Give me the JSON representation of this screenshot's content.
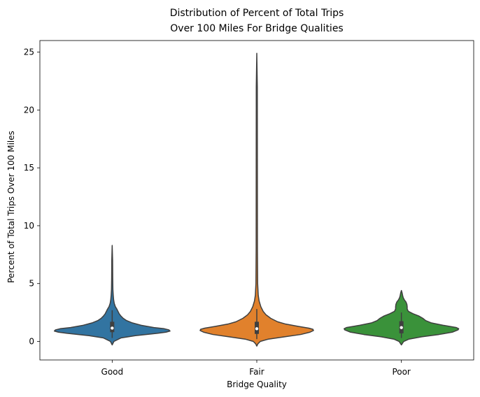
{
  "chart_data": {
    "type": "violin",
    "title": [
      "Distribution of Percent of Total Trips",
      "Over 100 Miles For Bridge Qualities"
    ],
    "xlabel": "Bridge Quality",
    "ylabel": "Percent of Total Trips Over 100 Miles",
    "ylim": [
      -1.6,
      26.0
    ],
    "yticks": [
      0,
      5,
      10,
      15,
      20,
      25
    ],
    "categories": [
      "Good",
      "Fair",
      "Poor"
    ],
    "colors": [
      "#3274a1",
      "#e1812c",
      "#3a923a"
    ],
    "grid": false,
    "series": [
      {
        "category": "Good",
        "min": -0.3,
        "max": 8.3,
        "q1": 0.8,
        "median": 1.15,
        "q3": 1.7,
        "whisker_low": 0.3,
        "whisker_high": 2.7,
        "density": [
          [
            -0.3,
            0.0
          ],
          [
            0.0,
            0.03
          ],
          [
            0.3,
            0.15
          ],
          [
            0.5,
            0.4
          ],
          [
            0.7,
            0.78
          ],
          [
            0.8,
            0.93
          ],
          [
            0.9,
            1.0
          ],
          [
            1.0,
            0.98
          ],
          [
            1.1,
            0.9
          ],
          [
            1.2,
            0.72
          ],
          [
            1.4,
            0.5
          ],
          [
            1.6,
            0.35
          ],
          [
            1.8,
            0.25
          ],
          [
            2.0,
            0.19
          ],
          [
            2.2,
            0.15
          ],
          [
            2.4,
            0.12
          ],
          [
            2.6,
            0.1
          ],
          [
            2.8,
            0.08
          ],
          [
            3.0,
            0.055
          ],
          [
            3.3,
            0.035
          ],
          [
            3.6,
            0.025
          ],
          [
            4.0,
            0.018
          ],
          [
            4.5,
            0.012
          ],
          [
            5.5,
            0.009
          ],
          [
            7.0,
            0.007
          ],
          [
            8.3,
            0.0
          ]
        ]
      },
      {
        "category": "Fair",
        "min": -0.4,
        "max": 24.9,
        "q1": 0.65,
        "median": 1.1,
        "q3": 1.7,
        "whisker_low": 0.2,
        "whisker_high": 2.8,
        "density": [
          [
            -0.4,
            0.0
          ],
          [
            -0.2,
            0.02
          ],
          [
            0.0,
            0.06
          ],
          [
            0.2,
            0.2
          ],
          [
            0.4,
            0.48
          ],
          [
            0.6,
            0.76
          ],
          [
            0.8,
            0.92
          ],
          [
            0.95,
            0.98
          ],
          [
            1.05,
            0.97
          ],
          [
            1.15,
            0.9
          ],
          [
            1.3,
            0.72
          ],
          [
            1.5,
            0.5
          ],
          [
            1.7,
            0.36
          ],
          [
            2.0,
            0.24
          ],
          [
            2.3,
            0.16
          ],
          [
            2.6,
            0.11
          ],
          [
            3.0,
            0.07
          ],
          [
            3.5,
            0.04
          ],
          [
            4.0,
            0.025
          ],
          [
            5.0,
            0.015
          ],
          [
            8.0,
            0.011
          ],
          [
            15.0,
            0.01
          ],
          [
            22.0,
            0.009
          ],
          [
            24.9,
            0.0
          ]
        ]
      },
      {
        "category": "Poor",
        "min": -0.3,
        "max": 4.4,
        "q1": 0.7,
        "median": 1.2,
        "q3": 1.75,
        "whisker_low": 0.3,
        "whisker_high": 2.5,
        "density": [
          [
            -0.3,
            0.0
          ],
          [
            0.0,
            0.04
          ],
          [
            0.2,
            0.13
          ],
          [
            0.4,
            0.35
          ],
          [
            0.6,
            0.65
          ],
          [
            0.8,
            0.88
          ],
          [
            1.0,
            0.98
          ],
          [
            1.1,
            0.99
          ],
          [
            1.2,
            0.95
          ],
          [
            1.4,
            0.72
          ],
          [
            1.6,
            0.52
          ],
          [
            1.8,
            0.42
          ],
          [
            2.0,
            0.37
          ],
          [
            2.2,
            0.3
          ],
          [
            2.4,
            0.2
          ],
          [
            2.6,
            0.12
          ],
          [
            2.8,
            0.1
          ],
          [
            3.0,
            0.1
          ],
          [
            3.2,
            0.095
          ],
          [
            3.4,
            0.08
          ],
          [
            3.6,
            0.05
          ],
          [
            3.8,
            0.03
          ],
          [
            4.0,
            0.02
          ],
          [
            4.2,
            0.012
          ],
          [
            4.4,
            0.0
          ]
        ]
      }
    ]
  }
}
